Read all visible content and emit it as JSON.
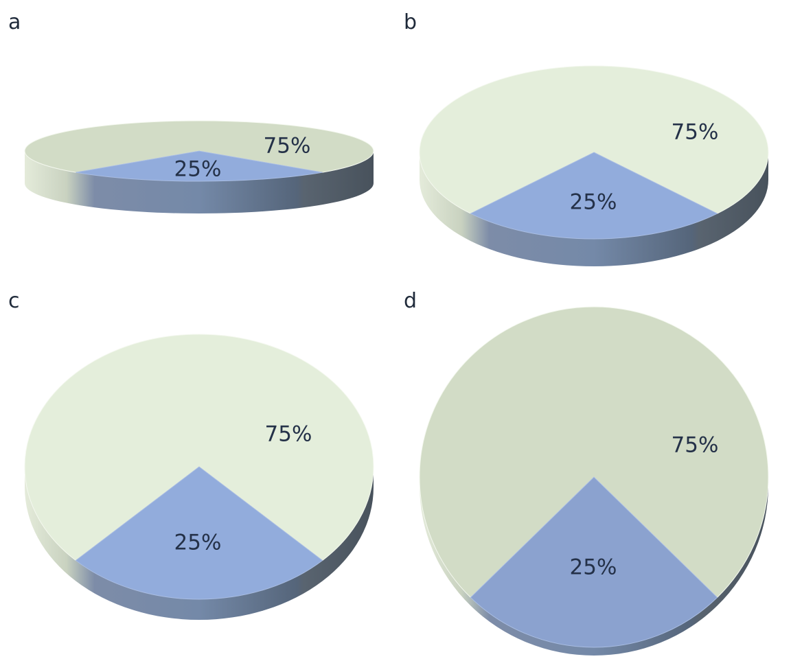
{
  "colors": {
    "large_top": "#e4eedb",
    "large_top_dark": "#d2dcc6",
    "small_top": "#92acdc",
    "small_top_dark": "#8ba2cf",
    "side_dark": "#4f5a64",
    "side_light": "#e2e9d8",
    "small_side": "#6b7d99",
    "label": "#243148"
  },
  "chart_data": [
    {
      "type": "pie",
      "panel_label": "a",
      "projection": "3d-tilted",
      "slices": [
        {
          "label": "75%",
          "value": 75
        },
        {
          "label": "25%",
          "value": 25
        }
      ]
    },
    {
      "type": "pie",
      "panel_label": "b",
      "projection": "3d-tilted",
      "slices": [
        {
          "label": "75%",
          "value": 75
        },
        {
          "label": "25%",
          "value": 25
        }
      ]
    },
    {
      "type": "pie",
      "panel_label": "c",
      "projection": "3d-tilted",
      "slices": [
        {
          "label": "75%",
          "value": 75
        },
        {
          "label": "25%",
          "value": 25
        }
      ]
    },
    {
      "type": "pie",
      "panel_label": "d",
      "projection": "3d-tilted",
      "slices": [
        {
          "label": "75%",
          "value": 75
        },
        {
          "label": "25%",
          "value": 25
        }
      ]
    }
  ]
}
